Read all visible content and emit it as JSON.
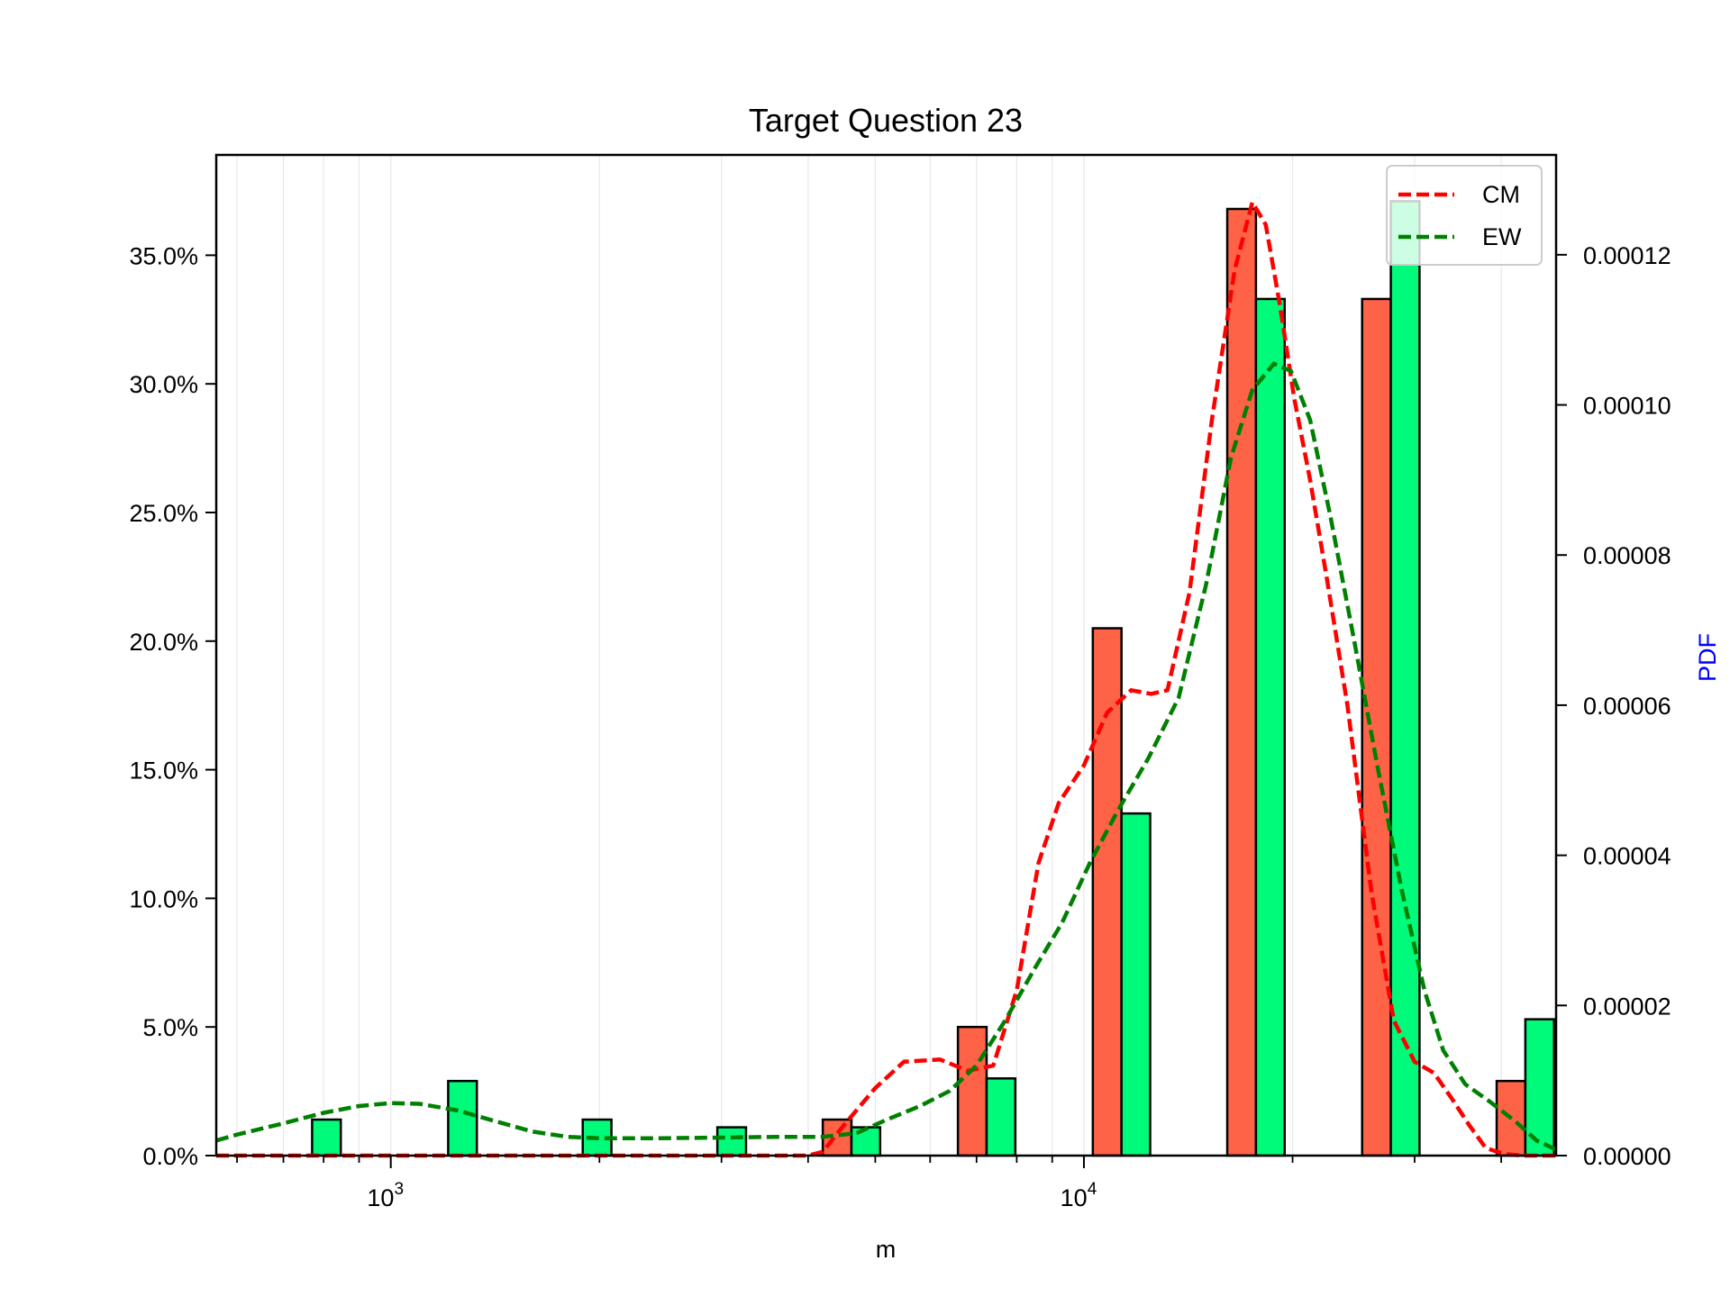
{
  "chart_data": {
    "type": "bar",
    "title": "Target Question 23",
    "xlabel": "m",
    "ylabel": "",
    "y2label": "PDF",
    "x_scale": "log",
    "xlim": [
      560,
      48000
    ],
    "ylim": [
      0,
      38.9
    ],
    "y2lim": [
      0,
      0.0001333
    ],
    "x_major_ticks": [
      {
        "value": 1000,
        "base": "10",
        "exp": "3"
      },
      {
        "value": 10000,
        "base": "10",
        "exp": "4"
      }
    ],
    "y_ticks": [
      "0.0%",
      "5.0%",
      "10.0%",
      "15.0%",
      "20.0%",
      "25.0%",
      "30.0%",
      "35.0%"
    ],
    "y_tick_values": [
      0,
      5,
      10,
      15,
      20,
      25,
      30,
      35
    ],
    "y2_ticks": [
      "0.00000",
      "0.00002",
      "0.00004",
      "0.00006",
      "0.00008",
      "0.00010",
      "0.00012"
    ],
    "y2_tick_values": [
      0,
      2e-05,
      4e-05,
      6e-05,
      8e-05,
      0.0001,
      0.00012
    ],
    "grid": "vertical-major-minor",
    "legend_position": "top-right",
    "bin_left_edges": [
      700,
      1100,
      1720,
      2690,
      4200,
      6580,
      10300,
      16100,
      25200,
      39400
    ],
    "bin_width_factor": 1.1,
    "series": [
      {
        "name": "CM",
        "color": "#ff6347",
        "values": [
          0,
          0,
          0,
          0,
          1.4,
          5.0,
          20.5,
          36.8,
          33.3,
          2.9
        ]
      },
      {
        "name": "EW",
        "color": "#00fa7a",
        "values": [
          1.4,
          2.9,
          1.4,
          1.1,
          1.1,
          3.0,
          13.3,
          33.3,
          37.1,
          5.3
        ]
      }
    ],
    "pdf_lines": [
      {
        "name": "CM",
        "color": "#ff0000",
        "x": [
          560,
          4000,
          4200,
          4500,
          5000,
          5500,
          6200,
          6800,
          7400,
          8000,
          8600,
          9200,
          10000,
          10800,
          11700,
          12500,
          13200,
          14200,
          15300,
          16500,
          17500,
          18300,
          19200,
          20100,
          21200,
          22400,
          24000,
          26000,
          28000,
          30000,
          32000,
          34000,
          36000,
          38000,
          40500,
          43000,
          48000
        ],
        "y": [
          0,
          0,
          5e-07,
          4e-06,
          9e-06,
          1.25e-05,
          1.28e-05,
          1.13e-05,
          1.2e-05,
          2.2e-05,
          3.9e-05,
          4.7e-05,
          5.2e-05,
          5.9e-05,
          6.2e-05,
          6.15e-05,
          6.2e-05,
          7.5e-05,
          9.8e-05,
          0.000118,
          0.000127,
          0.000124,
          0.000113,
          0.000101,
          9e-05,
          7.7e-05,
          6e-05,
          3.5e-05,
          1.8e-05,
          1.25e-05,
          1.1e-05,
          7.5e-06,
          4e-06,
          1e-06,
          2e-07,
          0,
          0
        ]
      },
      {
        "name": "EW",
        "color": "#008000",
        "x": [
          560,
          600,
          700,
          800,
          900,
          1000,
          1100,
          1250,
          1400,
          1600,
          1800,
          2000,
          2400,
          3000,
          3600,
          4200,
          4700,
          5200,
          5800,
          6400,
          7000,
          7700,
          8500,
          9300,
          10200,
          11200,
          12400,
          13700,
          15000,
          16300,
          17500,
          18800,
          19900,
          21200,
          22700,
          24500,
          26500,
          28800,
          31000,
          33000,
          35500,
          38500,
          42000,
          45000,
          48000
        ],
        "y": [
          2e-06,
          2.8e-06,
          4.3e-06,
          5.7e-06,
          6.6e-06,
          7e-06,
          6.9e-06,
          6e-06,
          4.7e-06,
          3.2e-06,
          2.5e-06,
          2.3e-06,
          2.3e-06,
          2.4e-06,
          2.5e-06,
          2.5e-06,
          3e-06,
          4.8e-06,
          6.6e-06,
          8.6e-06,
          1.2e-05,
          1.8e-05,
          2.5e-05,
          3.1e-05,
          3.9e-05,
          4.6e-05,
          5.3e-05,
          6.1e-05,
          7.6e-05,
          9.3e-05,
          0.000102,
          0.0001055,
          0.0001045,
          9.8e-05,
          8.5e-05,
          6.9e-05,
          5.2e-05,
          3.5e-05,
          2.2e-05,
          1.4e-05,
          9.5e-06,
          7.2e-06,
          4.5e-06,
          2e-06,
          8e-07
        ]
      }
    ]
  }
}
